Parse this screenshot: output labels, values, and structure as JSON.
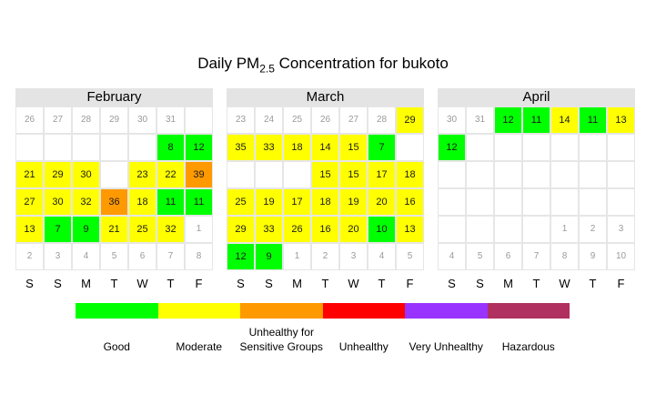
{
  "chart_data": {
    "type": "heatmap",
    "title_prefix": "Daily PM",
    "title_sub": "2.5",
    "title_suffix": " Concentration for bukoto",
    "day_labels": [
      "S",
      "S",
      "M",
      "T",
      "W",
      "T",
      "F"
    ],
    "categories": [
      {
        "label": "Good",
        "color": "#00ff00",
        "max": 12
      },
      {
        "label": "Moderate",
        "color": "#ffff00",
        "max": 35
      },
      {
        "label": "Unhealthy for\nSensitive Groups",
        "color": "#ff9900",
        "max": 55
      },
      {
        "label": "Unhealthy",
        "color": "#ff0000",
        "max": 150
      },
      {
        "label": "Very Unhealthy",
        "color": "#9933ff",
        "max": 250
      },
      {
        "label": "Hazardous",
        "color": "#b03060",
        "max": 9999
      }
    ],
    "months": [
      {
        "name": "February",
        "weeks": [
          [
            {
              "d": 26,
              "o": true
            },
            {
              "d": 27,
              "o": true
            },
            {
              "d": 28,
              "o": true
            },
            {
              "d": 29,
              "o": true
            },
            {
              "d": 30,
              "o": true
            },
            {
              "d": 31,
              "o": true
            },
            {
              "b": true
            }
          ],
          [
            {
              "b": true
            },
            {
              "b": true
            },
            {
              "b": true
            },
            {
              "b": true
            },
            {
              "b": true
            },
            {
              "v": 8
            },
            {
              "v": 12
            }
          ],
          [
            {
              "v": 21
            },
            {
              "v": 29
            },
            {
              "v": 30
            },
            {
              "b": true
            },
            {
              "v": 23
            },
            {
              "v": 22
            },
            {
              "v": 39
            }
          ],
          [
            {
              "v": 27
            },
            {
              "v": 30
            },
            {
              "v": 32
            },
            {
              "v": 36
            },
            {
              "v": 18
            },
            {
              "v": 11
            },
            {
              "v": 11
            }
          ],
          [
            {
              "v": 13
            },
            {
              "v": 7
            },
            {
              "v": 9
            },
            {
              "v": 21
            },
            {
              "v": 25
            },
            {
              "v": 32
            },
            {
              "d": 1,
              "o": true
            }
          ],
          [
            {
              "d": 2,
              "o": true
            },
            {
              "d": 3,
              "o": true
            },
            {
              "d": 4,
              "o": true
            },
            {
              "d": 5,
              "o": true
            },
            {
              "d": 6,
              "o": true
            },
            {
              "d": 7,
              "o": true
            },
            {
              "d": 8,
              "o": true
            }
          ]
        ]
      },
      {
        "name": "March",
        "weeks": [
          [
            {
              "d": 23,
              "o": true
            },
            {
              "d": 24,
              "o": true
            },
            {
              "d": 25,
              "o": true
            },
            {
              "d": 26,
              "o": true
            },
            {
              "d": 27,
              "o": true
            },
            {
              "d": 28,
              "o": true
            },
            {
              "v": 29
            }
          ],
          [
            {
              "v": 35
            },
            {
              "v": 33
            },
            {
              "v": 18
            },
            {
              "v": 14
            },
            {
              "v": 15
            },
            {
              "v": 7
            },
            {
              "b": true
            }
          ],
          [
            {
              "b": true
            },
            {
              "b": true
            },
            {
              "b": true
            },
            {
              "v": 15
            },
            {
              "v": 15
            },
            {
              "v": 17
            },
            {
              "v": 18
            }
          ],
          [
            {
              "v": 25
            },
            {
              "v": 19
            },
            {
              "v": 17
            },
            {
              "v": 18
            },
            {
              "v": 19
            },
            {
              "v": 20
            },
            {
              "v": 16
            }
          ],
          [
            {
              "v": 29
            },
            {
              "v": 33
            },
            {
              "v": 26
            },
            {
              "v": 16
            },
            {
              "v": 20
            },
            {
              "v": 10
            },
            {
              "v": 13
            }
          ],
          [
            {
              "v": 12
            },
            {
              "v": 9
            },
            {
              "d": 1,
              "o": true
            },
            {
              "d": 2,
              "o": true
            },
            {
              "d": 3,
              "o": true
            },
            {
              "d": 4,
              "o": true
            },
            {
              "d": 5,
              "o": true
            }
          ]
        ]
      },
      {
        "name": "April",
        "weeks": [
          [
            {
              "d": 30,
              "o": true
            },
            {
              "d": 31,
              "o": true
            },
            {
              "v": 12
            },
            {
              "v": 11
            },
            {
              "v": 14
            },
            {
              "v": 11
            },
            {
              "v": 13
            }
          ],
          [
            {
              "v": 12
            },
            {
              "b": true
            },
            {
              "b": true
            },
            {
              "b": true
            },
            {
              "b": true
            },
            {
              "b": true
            },
            {
              "b": true
            }
          ],
          [
            {
              "b": true
            },
            {
              "b": true
            },
            {
              "b": true
            },
            {
              "b": true
            },
            {
              "b": true
            },
            {
              "b": true
            },
            {
              "b": true
            }
          ],
          [
            {
              "b": true
            },
            {
              "b": true
            },
            {
              "b": true
            },
            {
              "b": true
            },
            {
              "b": true
            },
            {
              "b": true
            },
            {
              "b": true
            }
          ],
          [
            {
              "b": true
            },
            {
              "b": true
            },
            {
              "b": true
            },
            {
              "b": true
            },
            {
              "d": 1,
              "o": true
            },
            {
              "d": 2,
              "o": true
            },
            {
              "d": 3,
              "o": true
            }
          ],
          [
            {
              "d": 4,
              "o": true
            },
            {
              "d": 5,
              "o": true
            },
            {
              "d": 6,
              "o": true
            },
            {
              "d": 7,
              "o": true
            },
            {
              "d": 8,
              "o": true
            },
            {
              "d": 9,
              "o": true
            },
            {
              "d": 10,
              "o": true
            }
          ]
        ]
      }
    ]
  }
}
